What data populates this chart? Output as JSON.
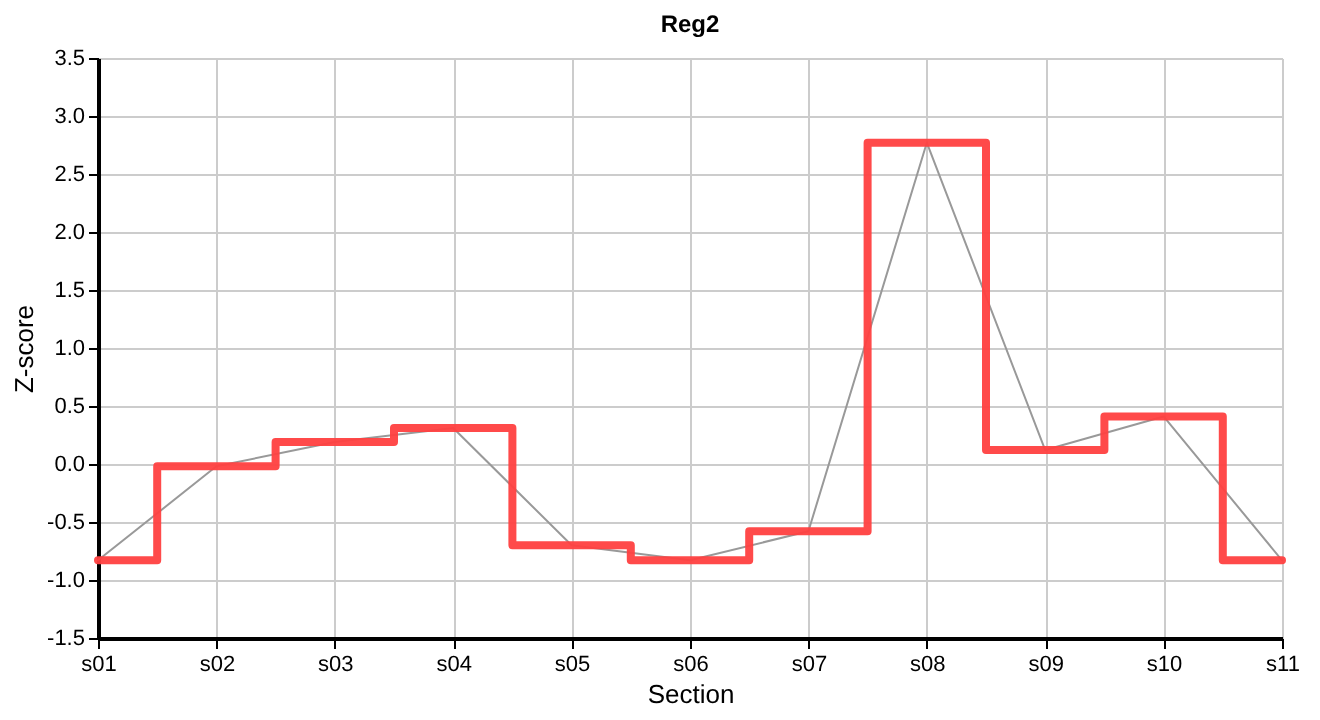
{
  "chart_data": {
    "type": "step",
    "title": "Reg2",
    "xlabel": "Section",
    "ylabel": "Z-score",
    "categories": [
      "s01",
      "s02",
      "s03",
      "s04",
      "s05",
      "s06",
      "s07",
      "s08",
      "s09",
      "s10",
      "s11"
    ],
    "series": [
      {
        "type": "line",
        "color": "#999999",
        "values": [
          -0.83,
          -0.02,
          0.19,
          0.31,
          -0.7,
          -0.83,
          -0.58,
          2.77,
          0.12,
          0.41,
          -0.83
        ]
      },
      {
        "color": "#ff4040",
        "values": [
          -0.83,
          -0.02,
          0.19,
          0.31,
          -0.7,
          -0.83,
          -0.58,
          2.77,
          0.12,
          0.41,
          -0.83
        ]
      }
    ],
    "ylim": [
      -1.5,
      3.5
    ],
    "yticks": [
      -1.5,
      {
        "value": -1,
        "label": "-1.0"
      },
      -0.5,
      {
        "value": 0,
        "label": "0.0"
      },
      0.5,
      {
        "value": 1,
        "label": "1.0"
      },
      1.5,
      {
        "value": 2,
        "label": "2.0"
      },
      2.5,
      {
        "value": 3,
        "label": "3.0"
      },
      3.5
    ],
    "grid": true
  }
}
